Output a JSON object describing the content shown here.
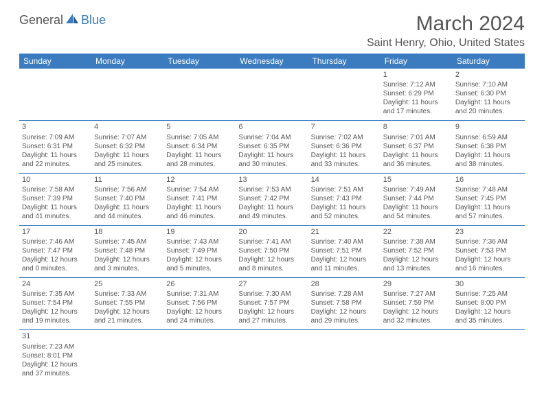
{
  "logo": {
    "general": "General",
    "blue": "Blue"
  },
  "title": "March 2024",
  "location": "Saint Henry, Ohio, United States",
  "colors": {
    "header_bg": "#3b7bbf",
    "header_text": "#ffffff",
    "body_text": "#555555",
    "border": "#3b7bbf",
    "background": "#ffffff"
  },
  "weekdays": [
    "Sunday",
    "Monday",
    "Tuesday",
    "Wednesday",
    "Thursday",
    "Friday",
    "Saturday"
  ],
  "weeks": [
    [
      null,
      null,
      null,
      null,
      null,
      {
        "n": "1",
        "sr": "7:12 AM",
        "ss": "6:29 PM",
        "dl": "11 hours and 17 minutes."
      },
      {
        "n": "2",
        "sr": "7:10 AM",
        "ss": "6:30 PM",
        "dl": "11 hours and 20 minutes."
      }
    ],
    [
      {
        "n": "3",
        "sr": "7:09 AM",
        "ss": "6:31 PM",
        "dl": "11 hours and 22 minutes."
      },
      {
        "n": "4",
        "sr": "7:07 AM",
        "ss": "6:32 PM",
        "dl": "11 hours and 25 minutes."
      },
      {
        "n": "5",
        "sr": "7:05 AM",
        "ss": "6:34 PM",
        "dl": "11 hours and 28 minutes."
      },
      {
        "n": "6",
        "sr": "7:04 AM",
        "ss": "6:35 PM",
        "dl": "11 hours and 30 minutes."
      },
      {
        "n": "7",
        "sr": "7:02 AM",
        "ss": "6:36 PM",
        "dl": "11 hours and 33 minutes."
      },
      {
        "n": "8",
        "sr": "7:01 AM",
        "ss": "6:37 PM",
        "dl": "11 hours and 36 minutes."
      },
      {
        "n": "9",
        "sr": "6:59 AM",
        "ss": "6:38 PM",
        "dl": "11 hours and 38 minutes."
      }
    ],
    [
      {
        "n": "10",
        "sr": "7:58 AM",
        "ss": "7:39 PM",
        "dl": "11 hours and 41 minutes."
      },
      {
        "n": "11",
        "sr": "7:56 AM",
        "ss": "7:40 PM",
        "dl": "11 hours and 44 minutes."
      },
      {
        "n": "12",
        "sr": "7:54 AM",
        "ss": "7:41 PM",
        "dl": "11 hours and 46 minutes."
      },
      {
        "n": "13",
        "sr": "7:53 AM",
        "ss": "7:42 PM",
        "dl": "11 hours and 49 minutes."
      },
      {
        "n": "14",
        "sr": "7:51 AM",
        "ss": "7:43 PM",
        "dl": "11 hours and 52 minutes."
      },
      {
        "n": "15",
        "sr": "7:49 AM",
        "ss": "7:44 PM",
        "dl": "11 hours and 54 minutes."
      },
      {
        "n": "16",
        "sr": "7:48 AM",
        "ss": "7:45 PM",
        "dl": "11 hours and 57 minutes."
      }
    ],
    [
      {
        "n": "17",
        "sr": "7:46 AM",
        "ss": "7:47 PM",
        "dl": "12 hours and 0 minutes."
      },
      {
        "n": "18",
        "sr": "7:45 AM",
        "ss": "7:48 PM",
        "dl": "12 hours and 3 minutes."
      },
      {
        "n": "19",
        "sr": "7:43 AM",
        "ss": "7:49 PM",
        "dl": "12 hours and 5 minutes."
      },
      {
        "n": "20",
        "sr": "7:41 AM",
        "ss": "7:50 PM",
        "dl": "12 hours and 8 minutes."
      },
      {
        "n": "21",
        "sr": "7:40 AM",
        "ss": "7:51 PM",
        "dl": "12 hours and 11 minutes."
      },
      {
        "n": "22",
        "sr": "7:38 AM",
        "ss": "7:52 PM",
        "dl": "12 hours and 13 minutes."
      },
      {
        "n": "23",
        "sr": "7:36 AM",
        "ss": "7:53 PM",
        "dl": "12 hours and 16 minutes."
      }
    ],
    [
      {
        "n": "24",
        "sr": "7:35 AM",
        "ss": "7:54 PM",
        "dl": "12 hours and 19 minutes."
      },
      {
        "n": "25",
        "sr": "7:33 AM",
        "ss": "7:55 PM",
        "dl": "12 hours and 21 minutes."
      },
      {
        "n": "26",
        "sr": "7:31 AM",
        "ss": "7:56 PM",
        "dl": "12 hours and 24 minutes."
      },
      {
        "n": "27",
        "sr": "7:30 AM",
        "ss": "7:57 PM",
        "dl": "12 hours and 27 minutes."
      },
      {
        "n": "28",
        "sr": "7:28 AM",
        "ss": "7:58 PM",
        "dl": "12 hours and 29 minutes."
      },
      {
        "n": "29",
        "sr": "7:27 AM",
        "ss": "7:59 PM",
        "dl": "12 hours and 32 minutes."
      },
      {
        "n": "30",
        "sr": "7:25 AM",
        "ss": "8:00 PM",
        "dl": "12 hours and 35 minutes."
      }
    ],
    [
      {
        "n": "31",
        "sr": "7:23 AM",
        "ss": "8:01 PM",
        "dl": "12 hours and 37 minutes."
      },
      null,
      null,
      null,
      null,
      null,
      null
    ]
  ],
  "labels": {
    "sunrise": "Sunrise:",
    "sunset": "Sunset:",
    "daylight": "Daylight:"
  }
}
